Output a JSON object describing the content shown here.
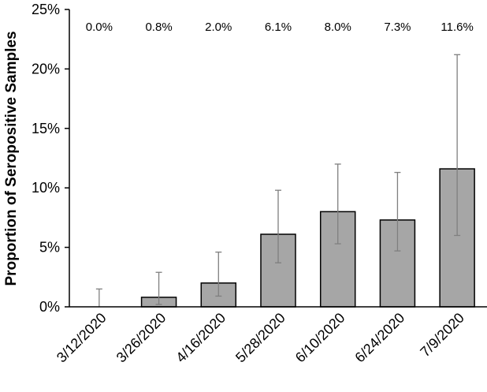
{
  "chart_data": {
    "type": "bar",
    "title": "",
    "xlabel": "",
    "ylabel": "Proportion of Seropositive Samples",
    "ylim": [
      0,
      25
    ],
    "yticks": [
      0,
      5,
      10,
      15,
      20,
      25
    ],
    "ytick_labels": [
      "0%",
      "5%",
      "10%",
      "15%",
      "20%",
      "25%"
    ],
    "categories": [
      "3/12/2020",
      "3/26/2020",
      "4/16/2020",
      "5/28/2020",
      "6/10/2020",
      "6/24/2020",
      "7/9/2020"
    ],
    "values": [
      0.0,
      0.8,
      2.0,
      6.1,
      8.0,
      7.3,
      11.6
    ],
    "data_labels": [
      "0.0%",
      "0.8%",
      "2.0%",
      "6.1%",
      "8.0%",
      "7.3%",
      "11.6%"
    ],
    "error_low": [
      0.0,
      0.2,
      0.9,
      3.7,
      5.3,
      4.7,
      6.0
    ],
    "error_high": [
      1.5,
      2.9,
      4.6,
      9.8,
      12.0,
      11.3,
      21.2
    ],
    "grid": false,
    "legend": "none",
    "colors": {
      "bar_fill": "#a6a6a6",
      "bar_stroke": "#000000",
      "error_bar": "#7f7f7f",
      "axis": "#000000"
    }
  }
}
